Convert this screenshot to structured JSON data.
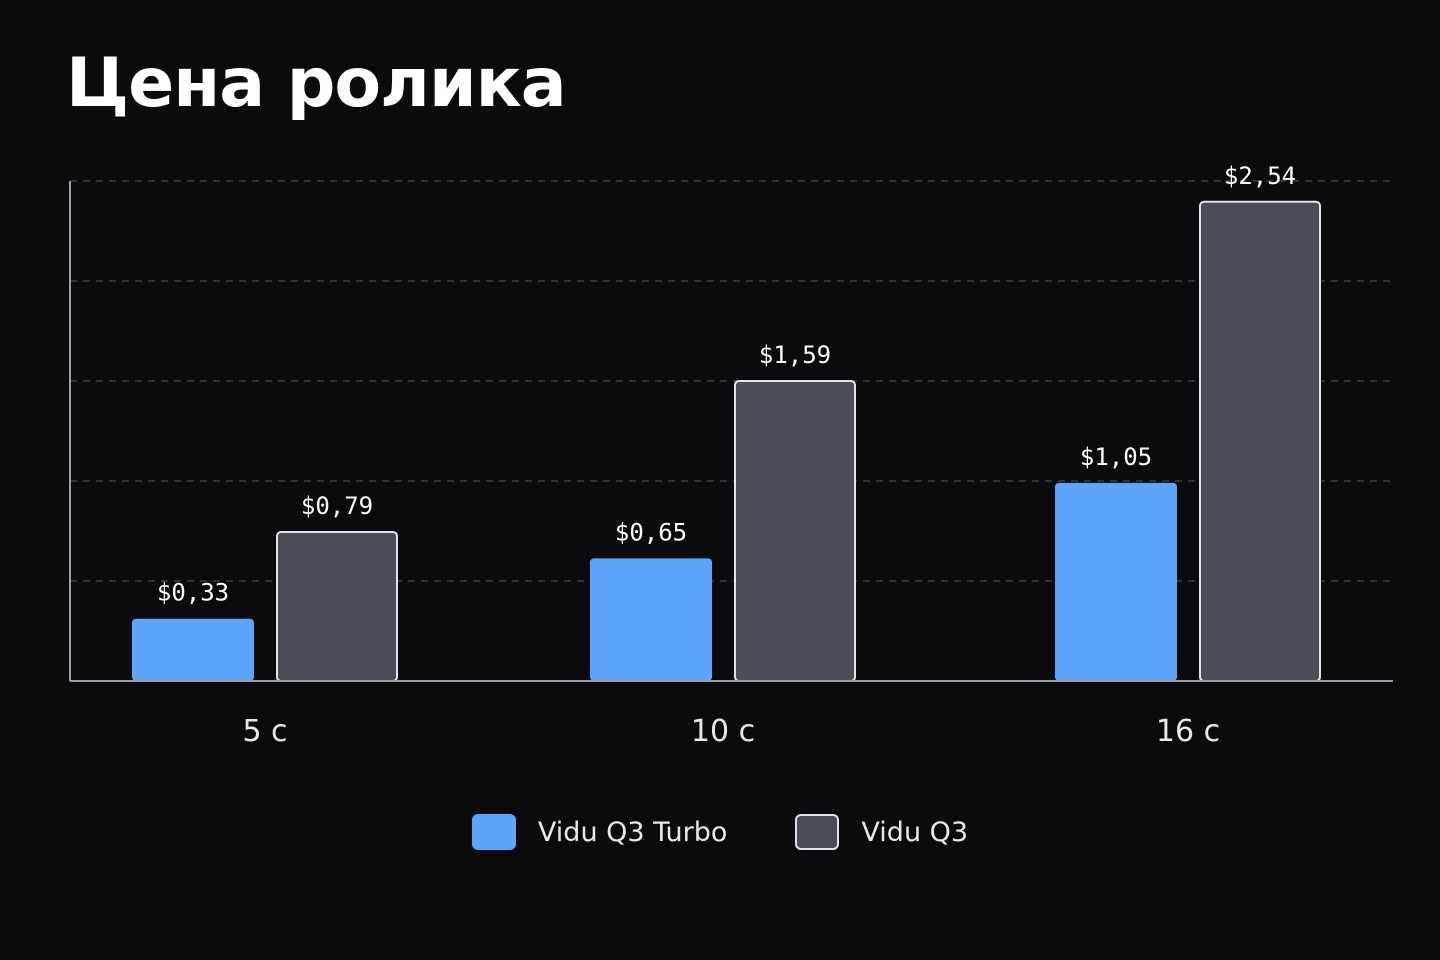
{
  "title": "Цена ролика",
  "colors": {
    "background": "#0b0b0d",
    "turbo": "#5ca5fb",
    "q3_fill": "#4a4d55",
    "q3_stroke": "#dfe3ea",
    "grid": "#5a5a60",
    "axis": "#9aa0aa"
  },
  "chart_data": {
    "type": "bar",
    "title": "Цена ролика",
    "xlabel": "",
    "ylabel": "",
    "categories": [
      "5 c",
      "10 c",
      "16 c"
    ],
    "series": [
      {
        "name": "Vidu Q3 Turbo",
        "values": [
          0.33,
          0.65,
          1.05
        ],
        "labels": [
          "$0,33",
          "$0,65",
          "$1,05"
        ]
      },
      {
        "name": "Vidu Q3",
        "values": [
          0.79,
          1.59,
          2.54
        ],
        "labels": [
          "$0,79",
          "$1,59",
          "$2,54"
        ]
      }
    ],
    "ylim": [
      0,
      2.65
    ],
    "grid": true,
    "legend": "bottom-center"
  }
}
